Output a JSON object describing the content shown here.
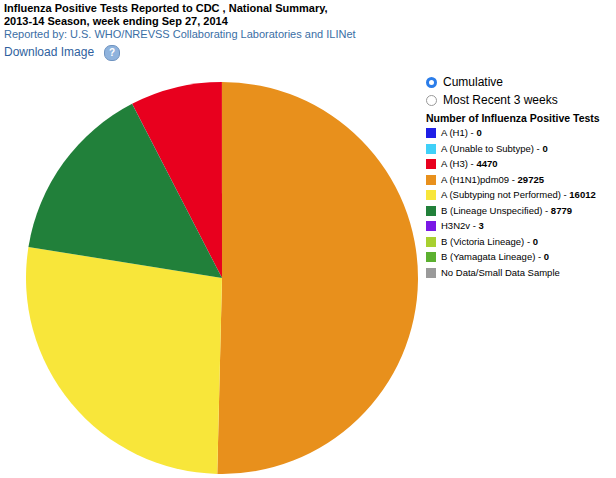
{
  "chart_data": {
    "type": "pie",
    "title": "Influenza Positive Tests Reported to CDC , National Summary,\n2013-14 Season, week ending Sep 27, 2014",
    "subtitle": "Reported by: U.S. WHO/NREVSS Collaborating Laboratories and ILINet",
    "categories": [
      "A (H1)",
      "A (Unable to Subtype)",
      "A (H3)",
      "A (H1N1)pdm09",
      "A (Subtyping not Performed)",
      "B (Lineage Unspecified)",
      "H3N2v",
      "B (Victoria Lineage)",
      "B (Yamagata Lineage)"
    ],
    "values": [
      0,
      0,
      4470,
      29725,
      16012,
      8779,
      3,
      0,
      0
    ],
    "colors": [
      "#1f1fe6",
      "#3fd0f8",
      "#e8001e",
      "#e8901c",
      "#f8e63a",
      "#21803a",
      "#7a18e6",
      "#a8d030",
      "#5cb030"
    ]
  },
  "page": {
    "download": "Download Image",
    "help_icon": "?",
    "radio_options": [
      "Cumulative",
      "Most Recent 3 weeks"
    ],
    "radio_selected": "Cumulative",
    "legend_title": "Number of Influenza Positive Tests",
    "legend_separator": " - ",
    "no_data": {
      "label": "No Data/Small Data Sample",
      "color": "#9a9a9a"
    }
  }
}
